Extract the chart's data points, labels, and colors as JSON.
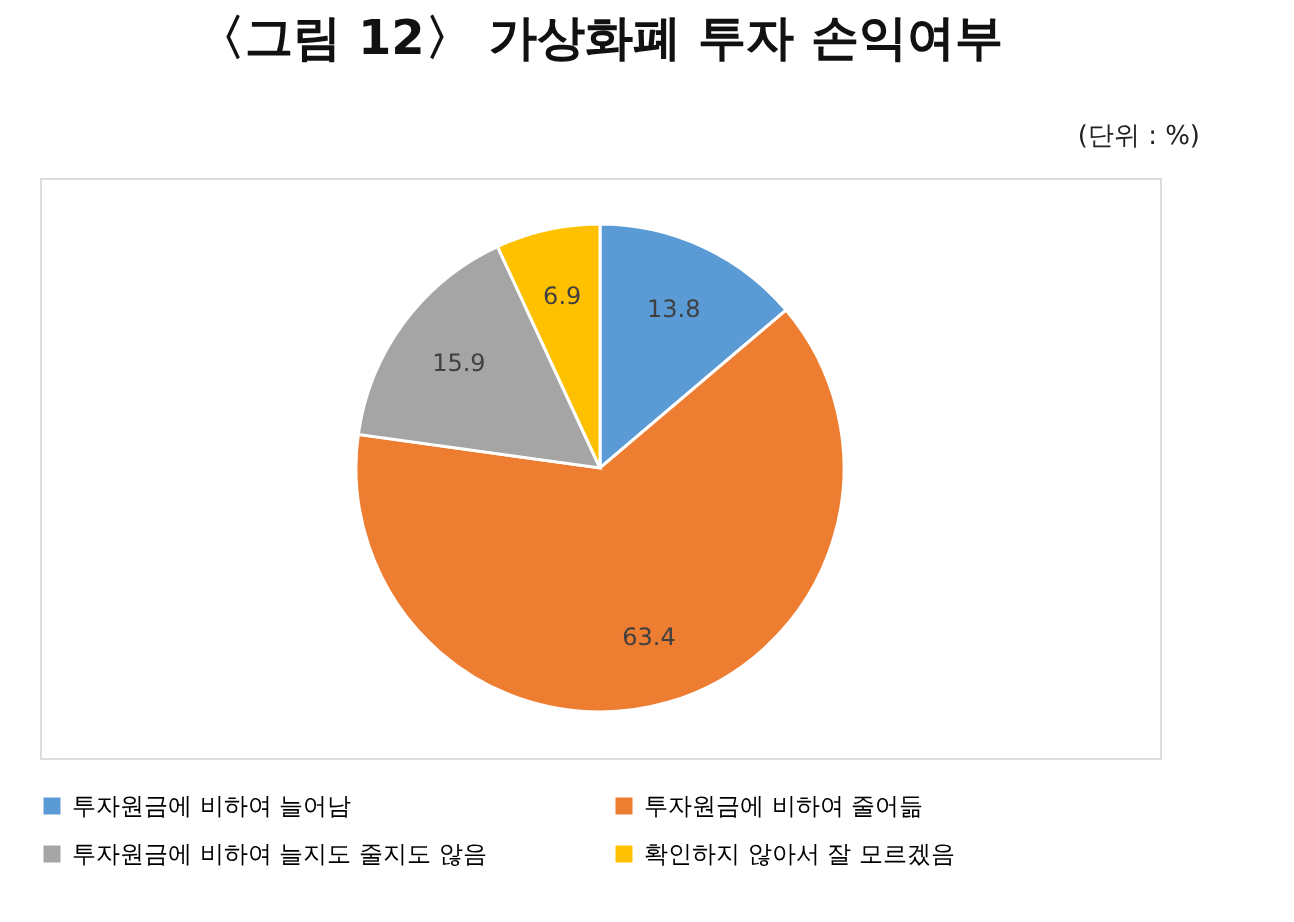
{
  "chart_data": {
    "type": "pie",
    "title": "〈그림 12〉 가상화폐 투자 손익여부",
    "subtitle": "(단위 : %)",
    "categories": [
      "투자원금에 비하여 늘어남",
      "투자원금에 비하여 줄어듦",
      "투자원금에 비하여 늘지도 줄지도 않음",
      "확인하지 않아서 잘 모르겠음"
    ],
    "values": [
      13.8,
      63.4,
      15.9,
      6.9
    ],
    "colors": [
      "#5b9bd5",
      "#ed7d31",
      "#a5a5a5",
      "#ffc000"
    ],
    "data_labels": true,
    "legend": "bottom"
  }
}
